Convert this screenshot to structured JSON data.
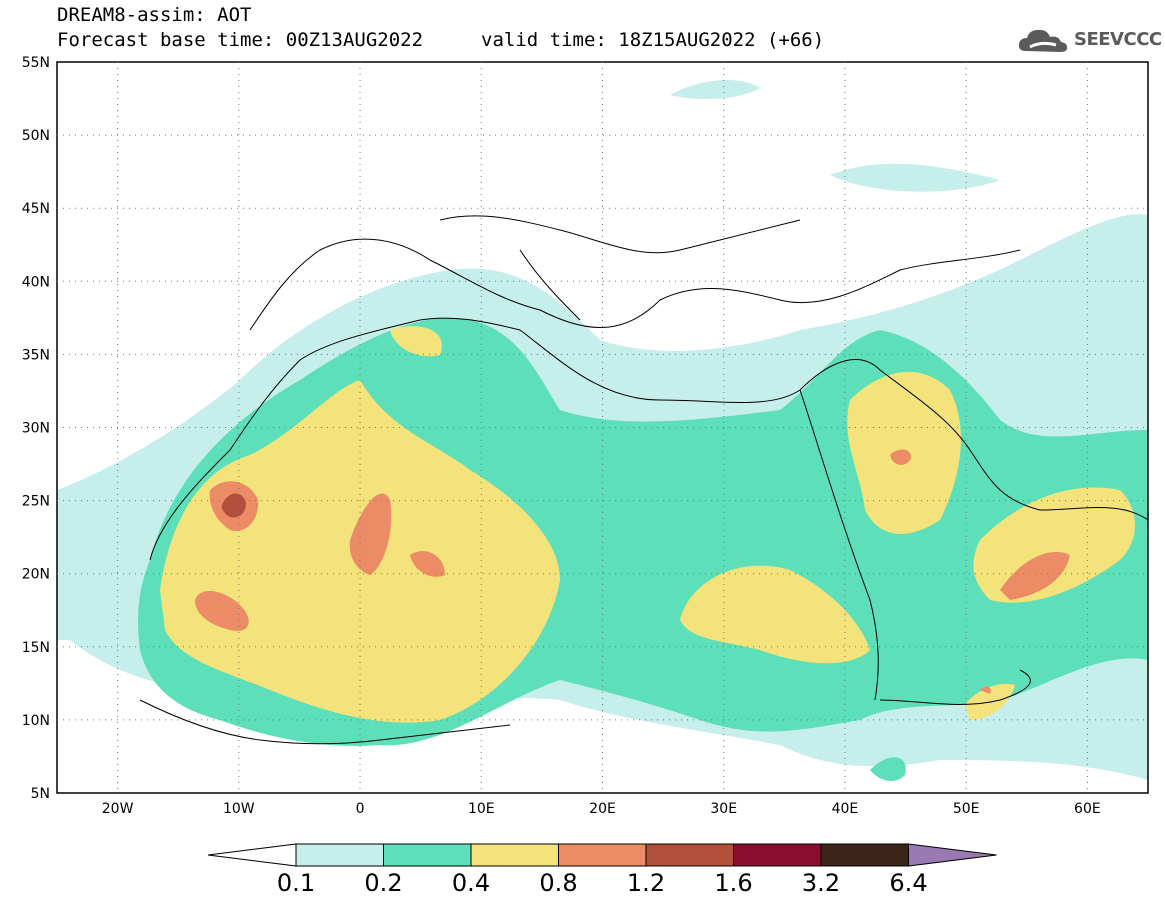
{
  "header": {
    "model": "DREAM8-assim: AOT",
    "forecast_label": "Forecast base time: 00Z13AUG2022",
    "valid_label": "valid time: 18Z15AUG2022 (+66)"
  },
  "logo": {
    "text": "SEEVCCC",
    "icon": "cloud-icon"
  },
  "map": {
    "lat_labels": [
      "55N",
      "50N",
      "45N",
      "40N",
      "35N",
      "30N",
      "25N",
      "20N",
      "15N",
      "10N",
      "5N"
    ],
    "lon_labels": [
      "20W",
      "10W",
      "0",
      "10E",
      "20E",
      "30E",
      "40E",
      "50E",
      "60E"
    ],
    "grid": true
  },
  "colorbar": {
    "labels": [
      "0.1",
      "0.2",
      "0.4",
      "0.8",
      "1.2",
      "1.6",
      "3.2",
      "6.4"
    ],
    "colors": [
      "#ffffff",
      "#c6eeea",
      "#5ddfba",
      "#f4e37a",
      "#eb8c66",
      "#b2503c",
      "#8a0c2e",
      "#3d2418",
      "#9a78b2"
    ]
  }
}
